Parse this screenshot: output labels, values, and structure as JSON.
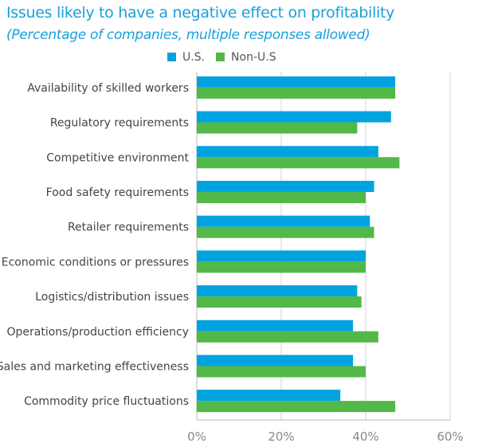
{
  "chart_data": {
    "type": "bar",
    "orientation": "horizontal",
    "title": "Issues likely to have a negative effect on profitability",
    "subtitle": "(Percentage of companies, multiple responses allowed)",
    "categories": [
      "Availability of skilled workers",
      "Regulatory requirements",
      "Competitive environment",
      "Food safety requirements",
      "Retailer requirements",
      "Economic conditions or pressures",
      "Logistics/distribution issues",
      "Operations/production efficiency",
      "Sales and marketing effectiveness",
      "Commodity price fluctuations"
    ],
    "series": [
      {
        "name": "U.S.",
        "color": "#00a3e0",
        "values": [
          47,
          46,
          43,
          42,
          41,
          40,
          38,
          37,
          37,
          34
        ]
      },
      {
        "name": "Non-U.S",
        "color": "#52b848",
        "values": [
          47,
          38,
          48,
          40,
          42,
          40,
          39,
          43,
          40,
          47
        ]
      }
    ],
    "xlim": [
      0,
      60
    ],
    "xticks": [
      0,
      20,
      40,
      60
    ],
    "tick_labels": [
      "0%",
      "20%",
      "40%",
      "60%"
    ],
    "grid": true,
    "legend": "top"
  }
}
